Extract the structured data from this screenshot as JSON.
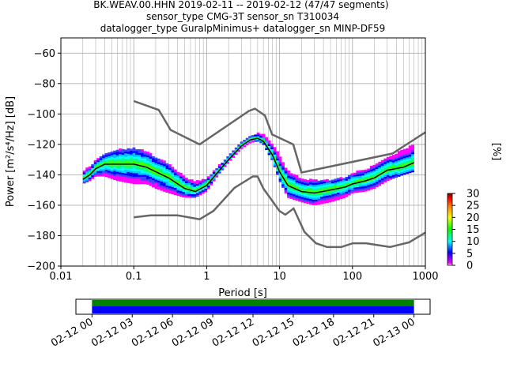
{
  "title": {
    "line1": "BK.WEAV.00.HHN   2019-02-11 -- 2019-02-12  (47/47 segments)",
    "line2": "sensor_type CMG-3T sensor_sn T310034",
    "line3": "datalogger_type GuralpMinimus+ datalogger_sn MINP-DF59"
  },
  "chart_data": [
    {
      "type": "heatmap",
      "xlabel": "Period [s]",
      "ylabel": "Power [m²/s⁴/Hz] [dB]",
      "x_scale": "log",
      "xlim": [
        0.01,
        1000
      ],
      "ylim": [
        -200,
        -50
      ],
      "x_ticks": [
        0.01,
        0.1,
        1,
        10,
        100,
        1000
      ],
      "x_tick_labels": [
        "0.01",
        "0.1",
        "1",
        "10",
        "100",
        "1000"
      ],
      "y_ticks": [
        -200,
        -180,
        -160,
        -140,
        -120,
        -100,
        -80,
        -60
      ],
      "y_tick_labels": [
        "−200",
        "−180",
        "−160",
        "−140",
        "−120",
        "−100",
        "−80",
        "−60"
      ],
      "grid": true,
      "colorbar": {
        "label": "[%]",
        "range": [
          0,
          30
        ],
        "ticks": [
          0,
          5,
          10,
          15,
          20,
          25,
          30
        ],
        "tick_labels": [
          "0",
          "5",
          "10",
          "15",
          "20",
          "25",
          "30"
        ],
        "colormap": [
          "#ffffff",
          "#ff00ff",
          "#0000ff",
          "#00ffff",
          "#00ff00",
          "#ffff00",
          "#ff8000",
          "#ff0000",
          "#800000"
        ]
      },
      "noise_models": {
        "color": "#666666",
        "nhnm": {
          "x": [
            0.1,
            0.22,
            0.32,
            0.8,
            3.8,
            4.6,
            6.3,
            7.9,
            15.4,
            20,
            354.8,
            1000
          ],
          "y": [
            -91.5,
            -97.4,
            -110.5,
            -120,
            -98,
            -96.5,
            -101,
            -113.5,
            -120,
            -138.5,
            -126,
            -112
          ]
        },
        "nlnm": {
          "x": [
            0.1,
            0.17,
            0.4,
            0.8,
            1.24,
            2.4,
            4.3,
            5,
            6,
            10,
            12,
            15.6,
            21.9,
            31.6,
            45,
            70,
            101,
            154,
            328,
            600,
            1000
          ],
          "y": [
            -168,
            -166.7,
            -166.7,
            -169.2,
            -163.7,
            -148.6,
            -141.1,
            -141.1,
            -149,
            -163.8,
            -166.2,
            -162.1,
            -177.5,
            -185,
            -187.5,
            -187.5,
            -185,
            -185,
            -187.5,
            -184.4,
            -178
          ]
        }
      },
      "median_curve": {
        "color": "#000000",
        "x": [
          0.02,
          0.025,
          0.03,
          0.04,
          0.06,
          0.1,
          0.15,
          0.2,
          0.3,
          0.5,
          0.7,
          1,
          1.5,
          2,
          3,
          4,
          5,
          6,
          8,
          10,
          13,
          20,
          30,
          50,
          80,
          100,
          150,
          200,
          300,
          500,
          700
        ],
        "y": [
          -143,
          -140,
          -136,
          -133,
          -133,
          -133,
          -135,
          -138,
          -142,
          -149,
          -151,
          -147,
          -137,
          -130,
          -121,
          -117,
          -116,
          -118,
          -127,
          -138,
          -147,
          -151,
          -152,
          -150,
          -148,
          -146,
          -144,
          -142,
          -137,
          -135,
          -132
        ]
      },
      "density_band": {
        "x": [
          0.02,
          0.025,
          0.03,
          0.04,
          0.06,
          0.1,
          0.15,
          0.2,
          0.3,
          0.5,
          0.7,
          1,
          1.5,
          2,
          3,
          4,
          5,
          6,
          8,
          10,
          13,
          20,
          30,
          50,
          80,
          100,
          150,
          200,
          300,
          500,
          700
        ],
        "upper": [
          -138,
          -135,
          -131,
          -126,
          -124,
          -123,
          -125,
          -129,
          -133,
          -142,
          -145,
          -143,
          -134,
          -128,
          -119,
          -115,
          -113,
          -114,
          -120,
          -128,
          -138,
          -143,
          -144,
          -144,
          -142,
          -139,
          -137,
          -134,
          -129,
          -124,
          -120
        ],
        "lower": [
          -146,
          -144,
          -141,
          -141,
          -144,
          -146,
          -146,
          -149,
          -152,
          -155,
          -155,
          -151,
          -139,
          -132,
          -123,
          -119,
          -118,
          -120,
          -131,
          -144,
          -155,
          -158,
          -160,
          -158,
          -155,
          -152,
          -151,
          -149,
          -144,
          -140,
          -138
        ]
      }
    },
    {
      "type": "timeline",
      "x_tick_labels": [
        "02-12 00",
        "02-12 03",
        "02-12 06",
        "02-12 09",
        "02-12 12",
        "02-12 15",
        "02-12 18",
        "02-12 21",
        "02-13 00"
      ],
      "x_hours": [
        0,
        3,
        6,
        9,
        12,
        15,
        18,
        21,
        24
      ],
      "data_start_hour": 0,
      "data_end_hour": 24,
      "axis_start_hour": -1.2,
      "axis_end_hour": 25.2,
      "bars": [
        {
          "color": "#008000"
        },
        {
          "color": "#0000ff"
        }
      ]
    }
  ]
}
